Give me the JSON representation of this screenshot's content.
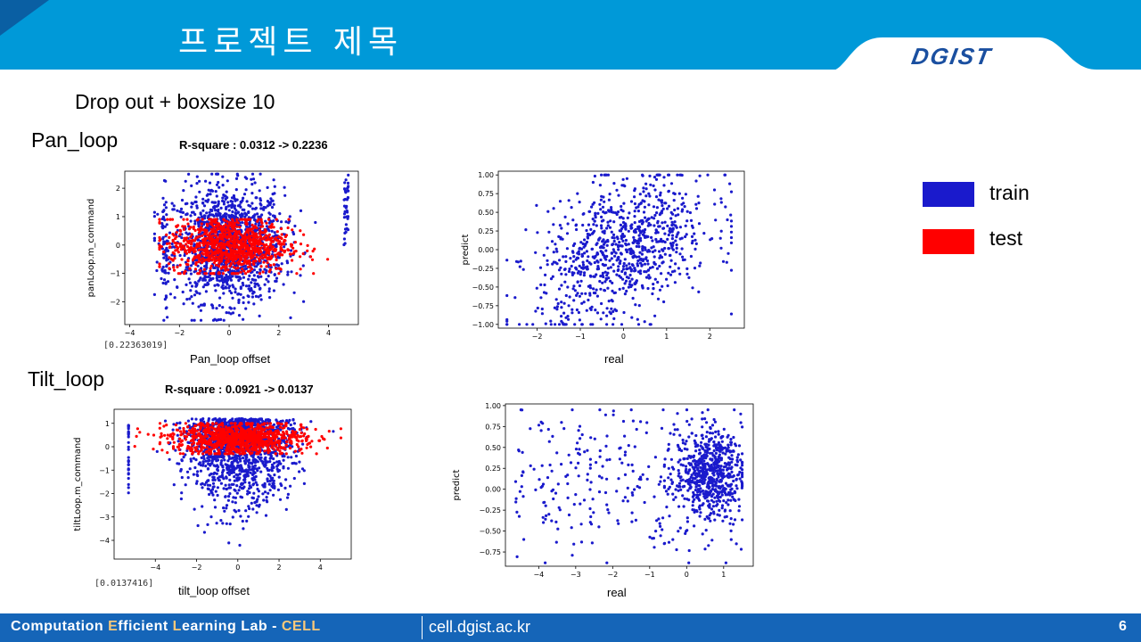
{
  "header": {
    "title": "프로젝트 제목",
    "logo_text": "DGIST",
    "colors": {
      "bar": "#0099d8",
      "corner": "#0a5fa3",
      "logo": "#1a4fa0"
    }
  },
  "subtitle": "Drop out + boxsize 10",
  "pan": {
    "label": "Pan_loop",
    "rsquare": "R-square : 0.0312 -> 0.2236",
    "coef": "[0.22363019]",
    "xlabel": "Pan_loop offset",
    "ylabel": "panLoop.m_command",
    "xlabel_pred": "real",
    "ylabel_pred": "predict"
  },
  "tilt": {
    "label": "Tilt_loop",
    "rsquare": "R-square : 0.0921 -> 0.0137",
    "coef": "[0.0137416]",
    "xlabel": "tilt_loop offset",
    "ylabel": "tiltLoop.m_command",
    "xlabel_pred": "real",
    "ylabel_pred": "predict"
  },
  "legend": [
    {
      "label": "train",
      "color": "#1a1acc"
    },
    {
      "label": "test",
      "color": "#ff0000"
    }
  ],
  "footer": {
    "lab_parts": [
      {
        "text": "C",
        "hl": false
      },
      {
        "text": "omputation ",
        "hl": false
      },
      {
        "text": "E",
        "hl": true
      },
      {
        "text": "fficient ",
        "hl": false
      },
      {
        "text": "L",
        "hl": true
      },
      {
        "text": "earning ",
        "hl": false
      },
      {
        "text": "Lab - ",
        "hl": false
      },
      {
        "text": "CELL",
        "hl": true
      }
    ],
    "url": "cell.dgist.ac.kr",
    "page": "6"
  },
  "chart_data": [
    {
      "type": "scatter",
      "id": "pan-offset",
      "xlabel": "Pan_loop offset",
      "ylabel": "panLoop.m_command",
      "xlim": [
        -4.2,
        5.2
      ],
      "ylim": [
        -2.8,
        2.6
      ],
      "xticks": [
        -4,
        -2,
        0,
        2,
        4
      ],
      "yticks": [
        -2,
        -1,
        0,
        1,
        2
      ],
      "series": [
        {
          "name": "train",
          "color": "#1a1acc",
          "dist": "offset_train"
        },
        {
          "name": "test",
          "color": "#ff0000",
          "dist": "offset_test"
        }
      ]
    },
    {
      "type": "scatter",
      "id": "pan-predict",
      "xlabel": "real",
      "ylabel": "predict",
      "xlim": [
        -2.9,
        2.8
      ],
      "ylim": [
        -1.05,
        1.05
      ],
      "xticks": [
        -2,
        -1,
        0,
        1,
        2
      ],
      "yticks": [
        -1.0,
        -0.75,
        -0.5,
        -0.25,
        0.0,
        0.25,
        0.5,
        0.75,
        1.0
      ],
      "series": [
        {
          "name": "predict",
          "color": "#1a1acc",
          "dist": "pred_pan"
        }
      ]
    },
    {
      "type": "scatter",
      "id": "tilt-offset",
      "xlabel": "tilt_loop offset",
      "ylabel": "tiltLoop.m_command",
      "xlim": [
        -6.0,
        5.5
      ],
      "ylim": [
        -4.8,
        1.6
      ],
      "xticks": [
        -4,
        -2,
        0,
        2,
        4
      ],
      "yticks": [
        -4,
        -3,
        -2,
        -1,
        0,
        1
      ],
      "series": [
        {
          "name": "train",
          "color": "#1a1acc",
          "dist": "offset_tilt_train"
        },
        {
          "name": "test",
          "color": "#ff0000",
          "dist": "offset_tilt_test"
        }
      ]
    },
    {
      "type": "scatter",
      "id": "tilt-predict",
      "xlabel": "real",
      "ylabel": "predict",
      "xlim": [
        -4.9,
        1.8
      ],
      "ylim": [
        -0.92,
        1.02
      ],
      "xticks": [
        -4,
        -3,
        -2,
        -1,
        0,
        1
      ],
      "yticks": [
        -0.75,
        -0.5,
        -0.25,
        0.0,
        0.25,
        0.5,
        0.75,
        1.0
      ],
      "series": [
        {
          "name": "predict",
          "color": "#1a1acc",
          "dist": "pred_tilt"
        }
      ]
    }
  ]
}
